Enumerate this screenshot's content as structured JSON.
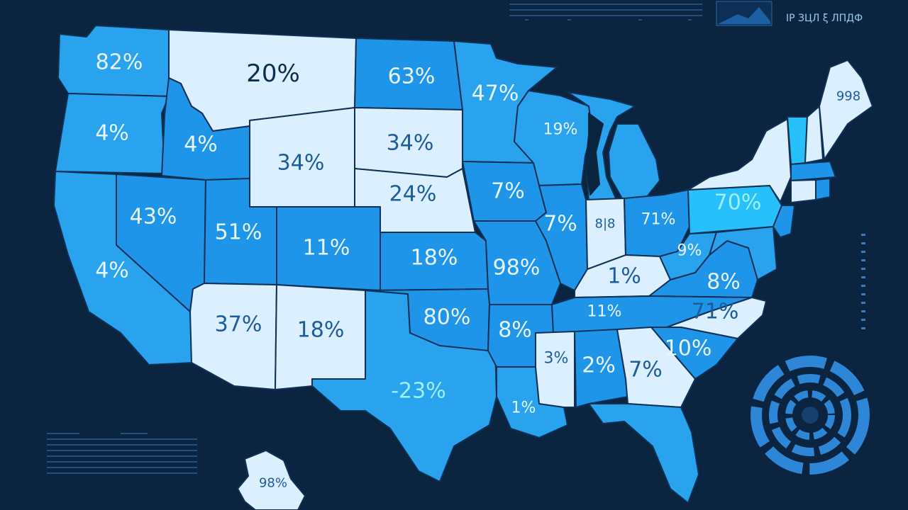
{
  "header": {
    "hud_text": "IP ЗЦЛ ξ ЛПДФ"
  },
  "colors": {
    "background": "#0b2440",
    "dark": "#1f95ea",
    "light": "#dcefff",
    "accent": "#27c0fa"
  },
  "states": {
    "WA": "82%",
    "MT": "20%",
    "ND": "63%",
    "MN": "47%",
    "OR": "4%",
    "ID": "4%",
    "WY": "34%",
    "SD": "34%",
    "WI": "19%",
    "NE": "24%",
    "IA": "7%",
    "NV": "43%",
    "UT": "51%",
    "CO": "11%",
    "KS": "18%",
    "MO": "98%",
    "IL": "7%",
    "IN": "8|8",
    "OH": "71%",
    "PA": "70%",
    "CA": "4%",
    "KY": "1%",
    "WV": "9%",
    "VA": "8%",
    "AZ": "37%",
    "NM": "18%",
    "OK": "80%",
    "AR": "8%",
    "TN": "11%",
    "NC": "71%",
    "SC": "10%",
    "MS": "3%",
    "AL": "2%",
    "GA": "7%",
    "TX": "-23%",
    "LA": "1%",
    "AK": "98%",
    "ME": "998"
  }
}
